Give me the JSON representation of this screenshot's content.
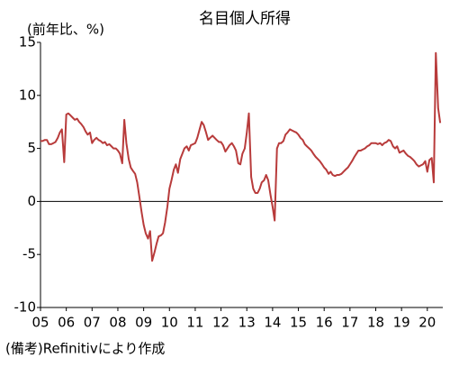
{
  "chart_data": {
    "type": "line",
    "title": "名目個人所得",
    "y_label": "(前年比、%)",
    "source": "(備考)Refinitivにより作成",
    "color": "#b83b3b",
    "xlim": [
      2005,
      2020.6
    ],
    "ylim": [
      -10,
      15
    ],
    "yticks": [
      -10,
      -5,
      0,
      5,
      10,
      15
    ],
    "xticks": [
      {
        "value": 2005,
        "label": "05"
      },
      {
        "value": 2006,
        "label": "06"
      },
      {
        "value": 2007,
        "label": "07"
      },
      {
        "value": 2008,
        "label": "08"
      },
      {
        "value": 2009,
        "label": "09"
      },
      {
        "value": 2010,
        "label": "10"
      },
      {
        "value": 2011,
        "label": "11"
      },
      {
        "value": 2012,
        "label": "12"
      },
      {
        "value": 2013,
        "label": "13"
      },
      {
        "value": 2014,
        "label": "14"
      },
      {
        "value": 2015,
        "label": "15"
      },
      {
        "value": 2016,
        "label": "16"
      },
      {
        "value": 2017,
        "label": "17"
      },
      {
        "value": 2018,
        "label": "18"
      },
      {
        "value": 2019,
        "label": "19"
      },
      {
        "value": 2020,
        "label": "20"
      }
    ],
    "x": [
      2005.0,
      2005.08,
      2005.17,
      2005.25,
      2005.33,
      2005.42,
      2005.5,
      2005.58,
      2005.67,
      2005.75,
      2005.83,
      2005.92,
      2006.0,
      2006.08,
      2006.17,
      2006.25,
      2006.33,
      2006.42,
      2006.5,
      2006.58,
      2006.67,
      2006.75,
      2006.83,
      2006.92,
      2007.0,
      2007.08,
      2007.17,
      2007.25,
      2007.33,
      2007.42,
      2007.5,
      2007.58,
      2007.67,
      2007.75,
      2007.83,
      2007.92,
      2008.0,
      2008.08,
      2008.17,
      2008.25,
      2008.33,
      2008.42,
      2008.5,
      2008.58,
      2008.67,
      2008.75,
      2008.83,
      2008.92,
      2009.0,
      2009.08,
      2009.17,
      2009.25,
      2009.33,
      2009.42,
      2009.5,
      2009.58,
      2009.67,
      2009.75,
      2009.83,
      2009.92,
      2010.0,
      2010.08,
      2010.17,
      2010.25,
      2010.33,
      2010.42,
      2010.5,
      2010.58,
      2010.67,
      2010.75,
      2010.83,
      2010.92,
      2011.0,
      2011.08,
      2011.17,
      2011.25,
      2011.33,
      2011.42,
      2011.5,
      2011.58,
      2011.67,
      2011.75,
      2011.83,
      2011.92,
      2012.0,
      2012.08,
      2012.17,
      2012.25,
      2012.33,
      2012.42,
      2012.5,
      2012.58,
      2012.67,
      2012.75,
      2012.83,
      2012.92,
      2013.0,
      2013.08,
      2013.17,
      2013.25,
      2013.33,
      2013.42,
      2013.5,
      2013.58,
      2013.67,
      2013.75,
      2013.83,
      2013.92,
      2014.0,
      2014.08,
      2014.17,
      2014.25,
      2014.33,
      2014.42,
      2014.5,
      2014.58,
      2014.67,
      2014.75,
      2014.83,
      2014.92,
      2015.0,
      2015.08,
      2015.17,
      2015.25,
      2015.33,
      2015.42,
      2015.5,
      2015.58,
      2015.67,
      2015.75,
      2015.83,
      2015.92,
      2016.0,
      2016.08,
      2016.17,
      2016.25,
      2016.33,
      2016.42,
      2016.5,
      2016.58,
      2016.67,
      2016.75,
      2016.83,
      2016.92,
      2017.0,
      2017.08,
      2017.17,
      2017.25,
      2017.33,
      2017.42,
      2017.5,
      2017.58,
      2017.67,
      2017.75,
      2017.83,
      2017.92,
      2018.0,
      2018.08,
      2018.17,
      2018.25,
      2018.33,
      2018.42,
      2018.5,
      2018.58,
      2018.67,
      2018.75,
      2018.83,
      2018.92,
      2019.0,
      2019.08,
      2019.17,
      2019.25,
      2019.33,
      2019.42,
      2019.5,
      2019.58,
      2019.67,
      2019.75,
      2019.83,
      2019.92,
      2020.0,
      2020.08,
      2020.17,
      2020.25,
      2020.33,
      2020.42,
      2020.5
    ],
    "values": [
      5.7,
      5.7,
      5.8,
      5.8,
      5.4,
      5.4,
      5.5,
      5.6,
      6.0,
      6.5,
      6.8,
      3.7,
      8.2,
      8.3,
      8.1,
      7.9,
      7.7,
      7.8,
      7.5,
      7.3,
      7.0,
      6.6,
      6.3,
      6.5,
      5.5,
      5.8,
      6.0,
      5.8,
      5.7,
      5.5,
      5.6,
      5.3,
      5.4,
      5.2,
      5.0,
      5.0,
      4.8,
      4.5,
      3.6,
      7.7,
      5.5,
      4.0,
      3.2,
      2.9,
      2.6,
      1.8,
      0.5,
      -1.0,
      -2.2,
      -3.0,
      -3.5,
      -2.8,
      -5.6,
      -4.8,
      -4.0,
      -3.3,
      -3.2,
      -3.0,
      -2.0,
      -0.5,
      1.2,
      2.0,
      3.0,
      3.5,
      2.7,
      4.0,
      4.5,
      5.0,
      5.2,
      4.8,
      5.3,
      5.4,
      5.5,
      6.0,
      6.8,
      7.5,
      7.2,
      6.5,
      5.8,
      6.0,
      6.2,
      6.0,
      5.8,
      5.6,
      5.6,
      5.3,
      4.7,
      5.0,
      5.3,
      5.5,
      5.2,
      4.8,
      3.6,
      3.5,
      4.5,
      5.0,
      6.5,
      8.3,
      2.3,
      1.2,
      0.8,
      0.8,
      1.2,
      1.8,
      2.0,
      2.5,
      2.0,
      0.6,
      -0.5,
      -1.8,
      5.0,
      5.5,
      5.5,
      5.7,
      6.3,
      6.5,
      6.8,
      6.7,
      6.6,
      6.5,
      6.3,
      6.0,
      5.8,
      5.4,
      5.2,
      5.0,
      4.8,
      4.5,
      4.2,
      4.0,
      3.8,
      3.5,
      3.2,
      3.0,
      2.6,
      2.8,
      2.5,
      2.4,
      2.5,
      2.5,
      2.6,
      2.8,
      3.0,
      3.2,
      3.5,
      3.8,
      4.2,
      4.5,
      4.8,
      4.8,
      4.9,
      5.0,
      5.2,
      5.3,
      5.5,
      5.5,
      5.5,
      5.4,
      5.5,
      5.3,
      5.5,
      5.6,
      5.8,
      5.7,
      5.2,
      5.0,
      5.2,
      4.6,
      4.7,
      4.8,
      4.5,
      4.3,
      4.2,
      4.0,
      3.8,
      3.5,
      3.3,
      3.4,
      3.5,
      3.8,
      2.8,
      3.9,
      4.1,
      1.8,
      14.0,
      8.8,
      7.4
    ]
  }
}
